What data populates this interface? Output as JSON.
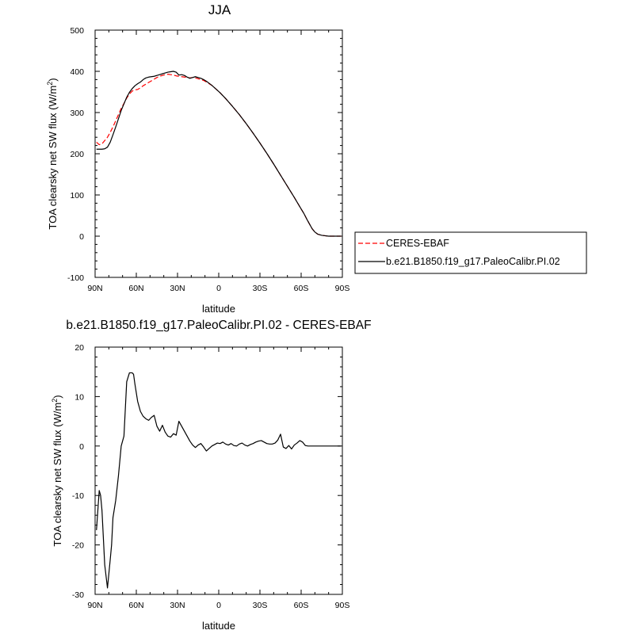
{
  "chart_data": [
    {
      "type": "line",
      "title": "JJA",
      "xlabel": "latitude",
      "ylabel": "TOA clearsky net SW flux (W/m",
      "ylabel_sup": "2",
      "ylabel_tail": ")",
      "xlim": [
        90,
        -90
      ],
      "ylim": [
        -100,
        500
      ],
      "xticks": [
        90,
        60,
        30,
        0,
        -30,
        -60,
        -90
      ],
      "xtick_labels": [
        "90N",
        "60N",
        "30N",
        "0",
        "30S",
        "60S",
        "90S"
      ],
      "yticks": [
        -100,
        0,
        100,
        200,
        300,
        400,
        500
      ],
      "ytick_labels": [
        "-100",
        "0",
        "100",
        "200",
        "300",
        "400",
        "500"
      ],
      "legend": {
        "placement": "right"
      },
      "series": [
        {
          "name": "CERES-EBAF",
          "color": "#ff0000",
          "dash": "dashed",
          "x": [
            89,
            87,
            85,
            83,
            81,
            79,
            77,
            75,
            73,
            71,
            69,
            67,
            65,
            63,
            61,
            59,
            57,
            55,
            53,
            51,
            49,
            47,
            45,
            43,
            41,
            39,
            37,
            35,
            33,
            31,
            29,
            27,
            25,
            23,
            21,
            19,
            17,
            15,
            13,
            11,
            9,
            7,
            5,
            3,
            1,
            -1,
            -5,
            -10,
            -15,
            -20,
            -25,
            -30,
            -35,
            -40,
            -45,
            -50,
            -55,
            -60,
            -62,
            -64,
            -66,
            -68,
            -70,
            -72,
            -75,
            -80,
            -85,
            -89
          ],
          "y": [
            228,
            222,
            224,
            232,
            240,
            252,
            265,
            280,
            295,
            310,
            322,
            335,
            345,
            352,
            355,
            356,
            360,
            365,
            369,
            373,
            377,
            381,
            385,
            388,
            390,
            392,
            393,
            392,
            391,
            389,
            388,
            387,
            386,
            385,
            384,
            385,
            384,
            382,
            380,
            378,
            374,
            370,
            366,
            360,
            354,
            348,
            334,
            315,
            295,
            273,
            250,
            226,
            201,
            175,
            148,
            121,
            94,
            66,
            55,
            42,
            30,
            18,
            10,
            5,
            2,
            0,
            0,
            0
          ]
        },
        {
          "name": "b.e21.B1850.f19_g17.PaleoCalibr.PI.02",
          "color": "#000000",
          "dash": "solid",
          "x": [
            89,
            87,
            85,
            83,
            81,
            79,
            77,
            75,
            73,
            71,
            69,
            67,
            65,
            63,
            61,
            59,
            57,
            55,
            53,
            51,
            49,
            47,
            45,
            43,
            41,
            39,
            37,
            35,
            33,
            31,
            29,
            27,
            25,
            23,
            21,
            19,
            17,
            15,
            13,
            11,
            9,
            7,
            5,
            3,
            1,
            -1,
            -5,
            -10,
            -15,
            -20,
            -25,
            -30,
            -35,
            -40,
            -45,
            -50,
            -55,
            -60,
            -62,
            -64,
            -66,
            -68,
            -70,
            -72,
            -75,
            -80,
            -85,
            -89
          ],
          "y": [
            211,
            211,
            211,
            212,
            216,
            228,
            246,
            265,
            285,
            305,
            321,
            337,
            349,
            358,
            365,
            370,
            374,
            380,
            384,
            386,
            387,
            388,
            390,
            392,
            394,
            396,
            398,
            399,
            400,
            398,
            391,
            392,
            390,
            386,
            383,
            385,
            387,
            385,
            383,
            380,
            376,
            371,
            366,
            360,
            354,
            348,
            334,
            315,
            295,
            273,
            250,
            226,
            201,
            175,
            148,
            121,
            94,
            66,
            55,
            42,
            30,
            18,
            10,
            5,
            2,
            0,
            0,
            0
          ]
        }
      ]
    },
    {
      "type": "line",
      "title": "b.e21.B1850.f19_g17.PaleoCalibr.PI.02 - CERES-EBAF",
      "xlabel": "latitude",
      "ylabel": "TOA clearsky net SW flux (W/m",
      "ylabel_sup": "2",
      "ylabel_tail": ")",
      "xlim": [
        90,
        -90
      ],
      "ylim": [
        -30,
        20
      ],
      "xticks": [
        90,
        60,
        30,
        0,
        -30,
        -60,
        -90
      ],
      "xtick_labels": [
        "90N",
        "60N",
        "30N",
        "0",
        "30S",
        "60S",
        "90S"
      ],
      "yticks": [
        -30,
        -20,
        -10,
        0,
        10,
        20
      ],
      "ytick_labels": [
        "-30",
        "-20",
        "-10",
        "0",
        "10",
        "20"
      ],
      "series": [
        {
          "color": "#000000",
          "dash": "solid",
          "x": [
            89,
            87,
            86,
            85,
            83,
            81,
            79,
            78,
            77,
            75,
            73,
            71,
            69,
            67,
            65,
            63,
            62,
            61,
            59,
            57,
            55,
            53,
            51,
            49,
            47,
            45,
            43,
            41,
            39,
            37,
            35,
            33,
            31,
            29,
            27,
            25,
            23,
            21,
            19,
            17,
            15,
            13,
            11,
            9,
            7,
            5,
            3,
            1,
            -1,
            -3,
            -5,
            -7,
            -9,
            -11,
            -13,
            -15,
            -17,
            -19,
            -21,
            -23,
            -25,
            -27,
            -29,
            -31,
            -33,
            -35,
            -37,
            -39,
            -41,
            -43,
            -45,
            -47,
            -49,
            -51,
            -53,
            -55,
            -57,
            -59,
            -61,
            -63,
            -65,
            -67,
            -69,
            -71,
            -73,
            -75,
            -77,
            -79,
            -81,
            -83,
            -85,
            -87,
            -89
          ],
          "y": [
            -17,
            -9,
            -10,
            -13,
            -24,
            -28.7,
            -23,
            -20,
            -14.5,
            -11,
            -6,
            0,
            2,
            13,
            14.8,
            14.8,
            14.5,
            12.5,
            9,
            7,
            6,
            5.5,
            5.2,
            5.8,
            6.2,
            4,
            3,
            4.2,
            2.8,
            2,
            1.8,
            2.5,
            2.2,
            5,
            4,
            3,
            2,
            1,
            0.2,
            -0.3,
            0.2,
            0.5,
            -0.2,
            -1,
            -0.5,
            0,
            0.3,
            0.6,
            0.5,
            0.8,
            0.4,
            0.2,
            0.5,
            0.1,
            0,
            0.4,
            0.6,
            0.2,
            0,
            0.3,
            0.5,
            0.8,
            1,
            1.1,
            0.8,
            0.5,
            0.4,
            0.4,
            0.6,
            1.2,
            2.4,
            -0.2,
            -0.5,
            0.1,
            -0.6,
            0.2,
            0.6,
            1.1,
            0.8,
            0.1,
            0,
            0,
            0,
            0,
            0,
            0,
            0,
            0,
            0,
            0,
            0,
            0,
            0
          ]
        }
      ]
    }
  ]
}
